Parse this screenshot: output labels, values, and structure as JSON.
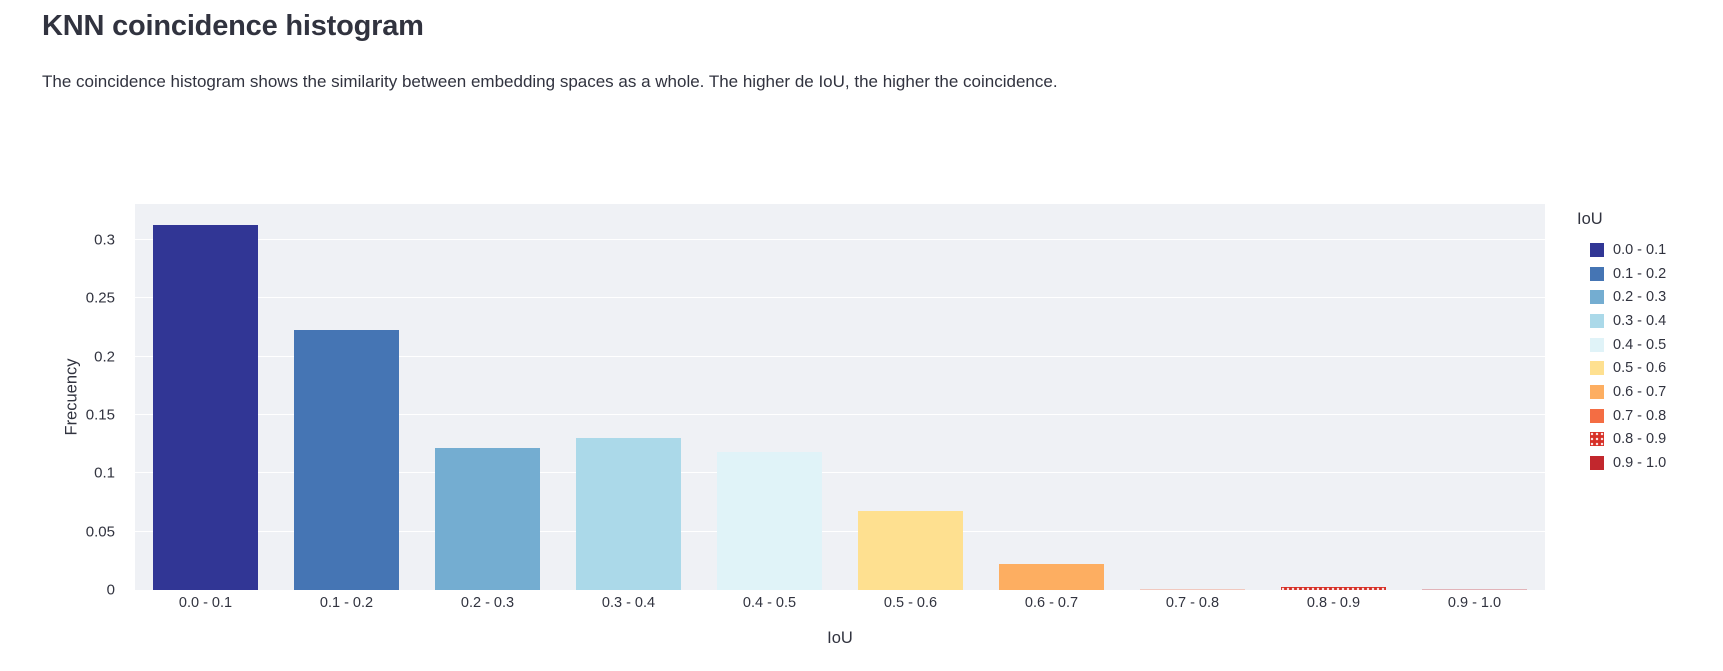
{
  "page": {
    "title": "KNN coincidence histogram",
    "subtitle": "The coincidence histogram shows the similarity between embedding spaces as a whole. The higher de IoU, the higher the coincidence."
  },
  "chart_data": {
    "type": "bar",
    "title": "",
    "xlabel": "IoU",
    "ylabel": "Frecuency",
    "legend_title": "IoU",
    "legend_position": "right",
    "grid": true,
    "ylim": [
      0,
      0.331
    ],
    "ytick_labels": [
      "0",
      "0.05",
      "0.1",
      "0.15",
      "0.2",
      "0.25",
      "0.3"
    ],
    "categories": [
      "0.0 - 0.1",
      "0.1 - 0.2",
      "0.2 - 0.3",
      "0.3 - 0.4",
      "0.4 - 0.5",
      "0.5 - 0.6",
      "0.6 - 0.7",
      "0.7 - 0.8",
      "0.8 - 0.9",
      "0.9 - 1.0"
    ],
    "values": [
      0.313,
      0.223,
      0.122,
      0.13,
      0.118,
      0.068,
      0.022,
      0.001,
      0.003,
      0.001
    ],
    "colors": [
      "#313695",
      "#4575B4",
      "#74ADD1",
      "#ABD9E9",
      "#E0F3F8",
      "#FEE090",
      "#FDAE61",
      "#F46D43",
      "#D73027",
      "#C2272D"
    ],
    "patterns": [
      null,
      null,
      null,
      null,
      null,
      null,
      null,
      null,
      "dots",
      null
    ]
  },
  "colors": {
    "text": "#31333F",
    "plot_background": "#EFF1F5",
    "gridline": "#FFFFFF",
    "page_background": "#FFFFFF"
  }
}
